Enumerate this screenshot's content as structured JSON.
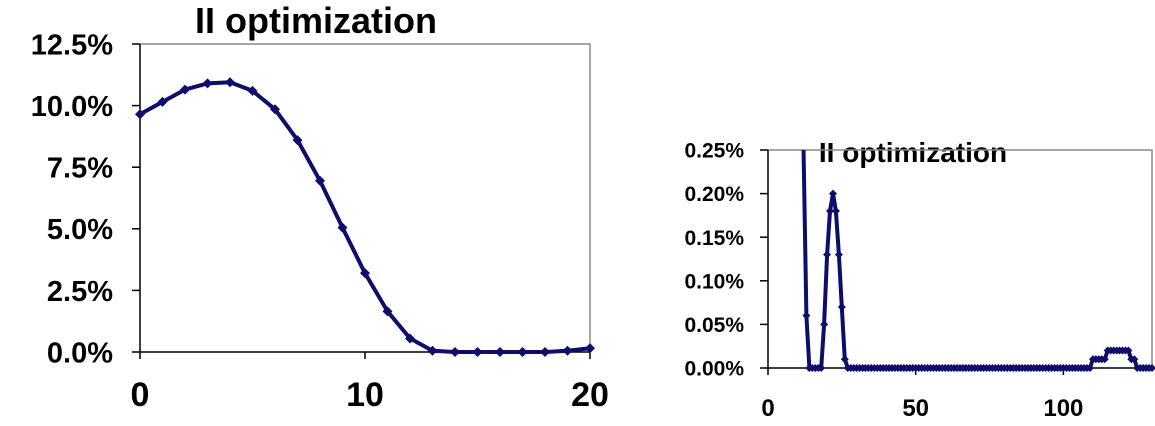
{
  "chart_data": [
    {
      "type": "line",
      "title": "II  optimization",
      "xlabel": "",
      "ylabel": "",
      "xlim": [
        0,
        20
      ],
      "ylim": [
        0,
        12.5
      ],
      "x_ticks": [
        "0",
        "10",
        "20"
      ],
      "y_ticks": [
        "0.0%",
        "2.5%",
        "5.0%",
        "7.5%",
        "10.0%",
        "12.5%"
      ],
      "y_unit": "%",
      "grid": false,
      "legend": "none",
      "series": [
        {
          "color": "#0d0d6b",
          "marker": "diamond",
          "x": [
            0,
            1,
            2,
            3,
            4,
            5,
            6,
            7,
            8,
            9,
            10,
            11,
            12,
            13,
            14,
            15,
            16,
            17,
            18,
            19,
            20
          ],
          "y": [
            9.65,
            10.15,
            10.65,
            10.9,
            10.95,
            10.6,
            9.85,
            8.6,
            6.95,
            5.05,
            3.2,
            1.65,
            0.55,
            0.05,
            0.0,
            0.0,
            0.0,
            0.0,
            0.0,
            0.05,
            0.15
          ]
        }
      ]
    },
    {
      "type": "line",
      "title": "II optimization",
      "xlabel": "",
      "ylabel": "",
      "xlim": [
        0,
        130
      ],
      "ylim": [
        0,
        0.25
      ],
      "x_ticks": [
        "0",
        "50",
        "100"
      ],
      "y_ticks": [
        "0.00%",
        "0.05%",
        "0.10%",
        "0.15%",
        "0.20%",
        "0.25%"
      ],
      "y_unit": "%",
      "grid": false,
      "legend": "none",
      "series": [
        {
          "color": "#0d0d6b",
          "marker": "diamond",
          "x": [
            12,
            13,
            14,
            15,
            16,
            17,
            18,
            19,
            20,
            21,
            22,
            23,
            24,
            25,
            26,
            27,
            28,
            29,
            30,
            31,
            32,
            33,
            34,
            35,
            36,
            37,
            38,
            39,
            40,
            41,
            42,
            43,
            44,
            45,
            46,
            47,
            48,
            49,
            50,
            51,
            52,
            53,
            54,
            55,
            56,
            57,
            58,
            59,
            60,
            61,
            62,
            63,
            64,
            65,
            66,
            67,
            68,
            69,
            70,
            71,
            72,
            73,
            74,
            75,
            76,
            77,
            78,
            79,
            80,
            81,
            82,
            83,
            84,
            85,
            86,
            87,
            88,
            89,
            90,
            91,
            92,
            93,
            94,
            95,
            96,
            97,
            98,
            99,
            100,
            101,
            102,
            103,
            104,
            105,
            106,
            107,
            108,
            109,
            110,
            111,
            112,
            113,
            114,
            115,
            116,
            117,
            118,
            119,
            120,
            121,
            122,
            123,
            124,
            125,
            126,
            127,
            128,
            129,
            130
          ],
          "y": [
            0.26,
            0.06,
            0.0,
            0.0,
            0.0,
            0.0,
            0.0,
            0.05,
            0.13,
            0.18,
            0.2,
            0.18,
            0.13,
            0.07,
            0.01,
            0,
            0,
            0,
            0,
            0,
            0,
            0,
            0,
            0,
            0,
            0,
            0,
            0,
            0,
            0,
            0,
            0,
            0,
            0,
            0,
            0,
            0,
            0,
            0,
            0,
            0,
            0,
            0,
            0,
            0,
            0,
            0,
            0,
            0,
            0,
            0,
            0,
            0,
            0,
            0,
            0,
            0,
            0,
            0,
            0,
            0,
            0,
            0,
            0,
            0,
            0,
            0,
            0,
            0,
            0,
            0,
            0,
            0,
            0,
            0,
            0,
            0,
            0,
            0,
            0,
            0,
            0,
            0,
            0,
            0,
            0,
            0,
            0,
            0,
            0,
            0,
            0,
            0,
            0,
            0,
            0,
            0,
            0,
            0.01,
            0.01,
            0.01,
            0.01,
            0.01,
            0.02,
            0.02,
            0.02,
            0.02,
            0.02,
            0.02,
            0.02,
            0.02,
            0.01,
            0.01,
            0.0,
            0.0,
            0.0,
            0.0,
            0.0,
            0.0
          ]
        }
      ]
    }
  ]
}
